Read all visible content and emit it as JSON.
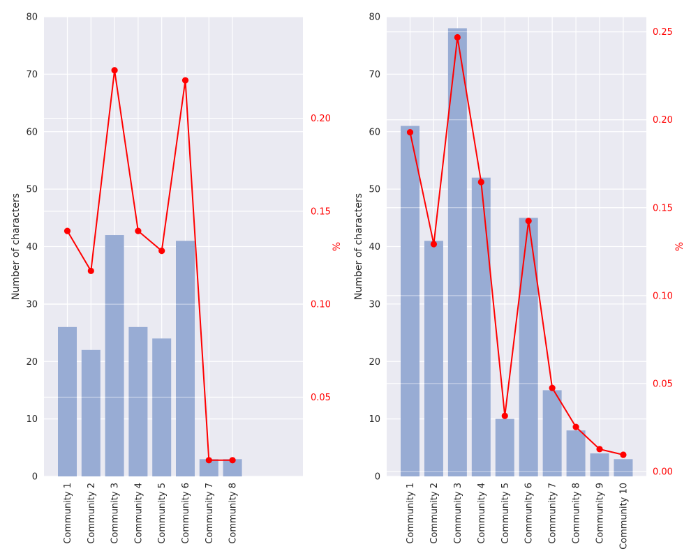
{
  "chart_data": [
    {
      "type": "bar",
      "categories": [
        "Community 1",
        "Community 2",
        "Community 3",
        "Community 4",
        "Community 5",
        "Community 6",
        "Community 7",
        "Community 8"
      ],
      "ylabel": "Number of characters",
      "y2label": "%",
      "ylim": [
        0,
        80
      ],
      "yticks": [
        0,
        10,
        20,
        30,
        40,
        50,
        60,
        70,
        80
      ],
      "y2lim": [
        0.0074,
        0.2546
      ],
      "y2ticks": [
        0.05,
        0.1,
        0.15,
        0.2
      ],
      "y2tick_labels": [
        "0.05",
        "0.10",
        "0.15",
        "0.20"
      ],
      "grid": true,
      "series": [
        {
          "type": "bar",
          "values": [
            26,
            22,
            42,
            26,
            24,
            41,
            3,
            3
          ]
        },
        {
          "type": "line",
          "axis": "right",
          "values": [
            0.1394,
            0.1179,
            0.2258,
            0.1394,
            0.1287,
            0.2204,
            0.0161,
            0.0161
          ]
        }
      ]
    },
    {
      "type": "bar",
      "categories": [
        "Community 1",
        "Community 2",
        "Community 3",
        "Community 4",
        "Community 5",
        "Community 6",
        "Community 7",
        "Community 8",
        "Community 9",
        "Community 10"
      ],
      "ylabel": "Number of characters",
      "y2label": "%",
      "ylim": [
        0,
        80
      ],
      "yticks": [
        0,
        10,
        20,
        30,
        40,
        50,
        60,
        70,
        80
      ],
      "y2lim": [
        -0.0028,
        0.2586
      ],
      "y2ticks": [
        0.0,
        0.05,
        0.1,
        0.15,
        0.2,
        0.25
      ],
      "y2tick_labels": [
        "0.00",
        "0.05",
        "0.10",
        "0.15",
        "0.20",
        "0.25"
      ],
      "grid": true,
      "series": [
        {
          "type": "bar",
          "values": [
            61,
            41,
            78,
            52,
            10,
            45,
            15,
            8,
            4,
            3
          ]
        },
        {
          "type": "line",
          "axis": "right",
          "values": [
            0.1929,
            0.1293,
            0.2469,
            0.1646,
            0.0316,
            0.1425,
            0.0475,
            0.0253,
            0.0127,
            0.0095
          ]
        }
      ]
    }
  ],
  "colors": {
    "plot_bg": "#eaeaf2",
    "grid": "#ffffff",
    "bar": "#98acd4",
    "line": "#ff0000",
    "text": "#262626",
    "axis_right_text": "#ff0000"
  }
}
